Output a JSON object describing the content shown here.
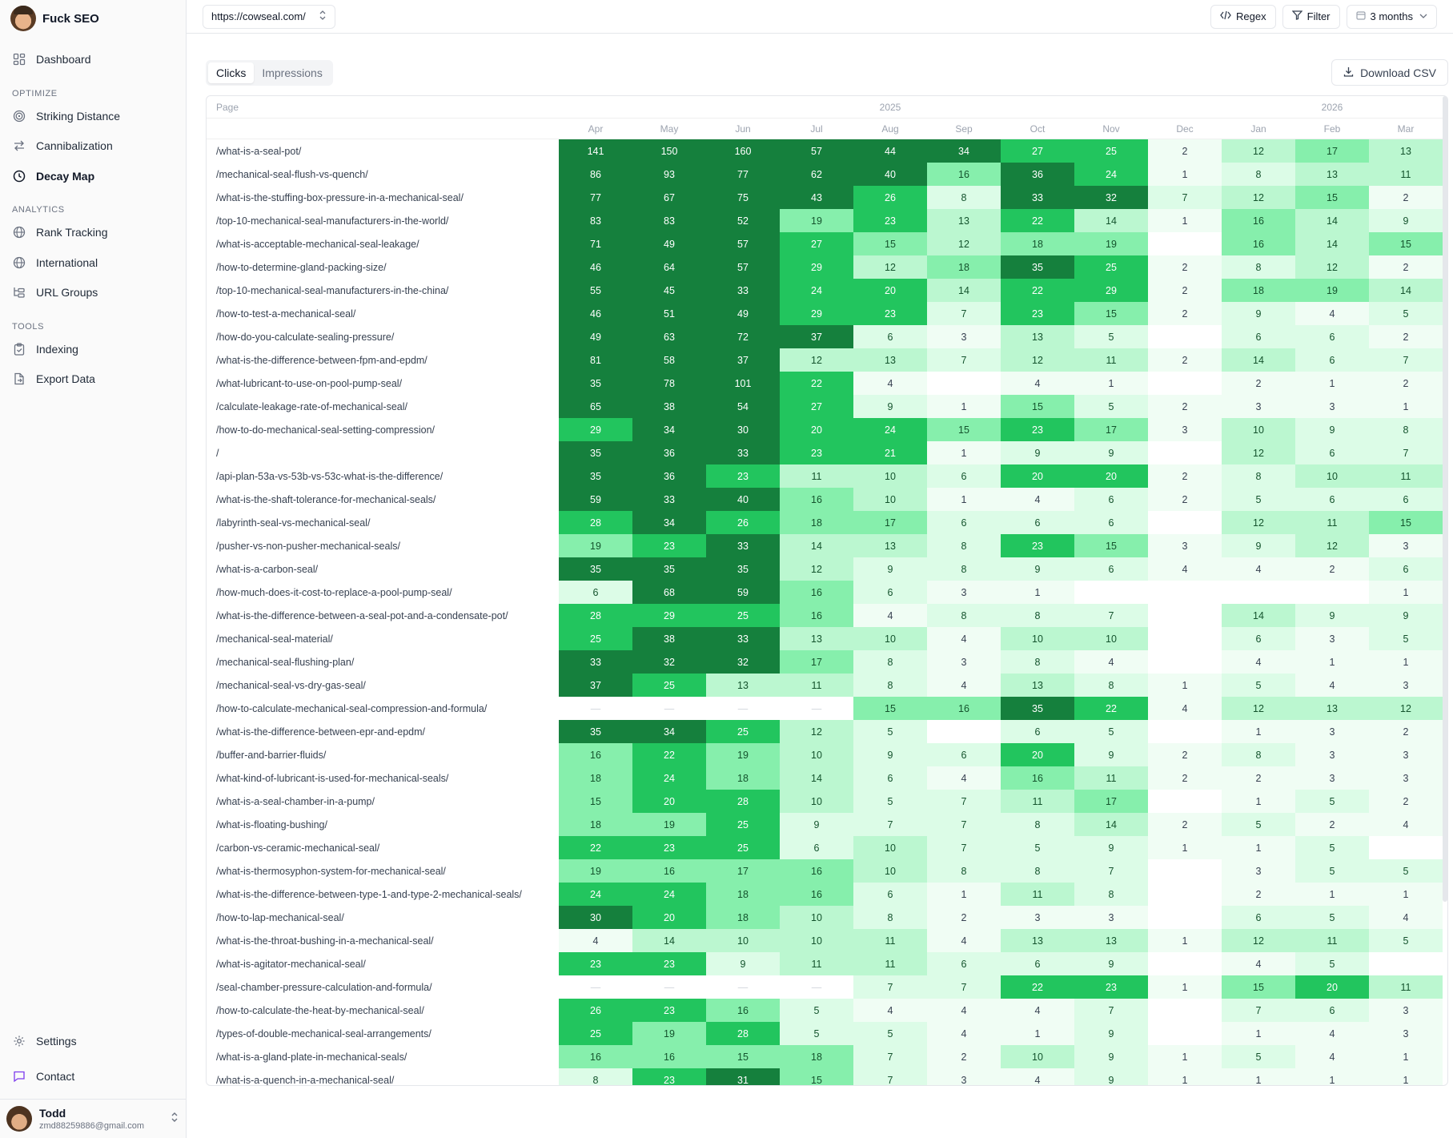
{
  "app": {
    "name": "Fuck SEO"
  },
  "sidebar": {
    "nav_top": [
      {
        "label": "Dashboard",
        "icon": "grid-icon"
      }
    ],
    "sections": [
      {
        "label": "OPTIMIZE",
        "items": [
          {
            "label": "Striking Distance",
            "icon": "target-icon",
            "active": false
          },
          {
            "label": "Cannibalization",
            "icon": "arrows-swap-icon",
            "active": false
          },
          {
            "label": "Decay Map",
            "icon": "clock-icon",
            "active": true
          }
        ]
      },
      {
        "label": "ANALYTICS",
        "items": [
          {
            "label": "Rank Tracking",
            "icon": "globe-icon",
            "active": false
          },
          {
            "label": "International",
            "icon": "globe-icon",
            "active": false
          },
          {
            "label": "URL Groups",
            "icon": "folder-tree-icon",
            "active": false
          }
        ]
      },
      {
        "label": "TOOLS",
        "items": [
          {
            "label": "Indexing",
            "icon": "clipboard-check-icon",
            "active": false
          },
          {
            "label": "Export Data",
            "icon": "file-export-icon",
            "active": false
          }
        ]
      }
    ],
    "bottom": [
      {
        "label": "Settings",
        "icon": "gear-icon"
      },
      {
        "label": "Contact",
        "icon": "message-icon"
      }
    ],
    "user": {
      "name": "Todd",
      "email": "zmd88259886@gmail.com"
    }
  },
  "topbar": {
    "site_url": "https://cowseal.com/",
    "regex_label": "Regex",
    "filter_label": "Filter",
    "range_label": "3 months"
  },
  "tabs": [
    {
      "label": "Clicks",
      "active": true
    },
    {
      "label": "Impressions",
      "active": false
    }
  ],
  "download_label": "Download CSV",
  "table": {
    "page_header": "Page",
    "years": [
      {
        "label": "2025"
      },
      {
        "label": "2026"
      }
    ],
    "months": [
      "Apr",
      "May",
      "Jun",
      "Jul",
      "Aug",
      "Sep",
      "Oct",
      "Nov",
      "Dec",
      "Jan",
      "Feb",
      "Mar"
    ],
    "rows": [
      {
        "page": "/what-is-a-seal-pot/",
        "values": [
          141,
          150,
          160,
          57,
          44,
          34,
          27,
          25,
          2,
          12,
          17,
          13
        ]
      },
      {
        "page": "/mechanical-seal-flush-vs-quench/",
        "values": [
          86,
          93,
          77,
          62,
          40,
          16,
          36,
          24,
          1,
          8,
          13,
          11
        ]
      },
      {
        "page": "/what-is-the-stuffing-box-pressure-in-a-mechanical-seal/",
        "values": [
          77,
          67,
          75,
          43,
          26,
          8,
          33,
          32,
          7,
          12,
          15,
          2
        ]
      },
      {
        "page": "/top-10-mechanical-seal-manufacturers-in-the-world/",
        "values": [
          83,
          83,
          52,
          19,
          23,
          13,
          22,
          14,
          1,
          16,
          14,
          9
        ]
      },
      {
        "page": "/what-is-acceptable-mechanical-seal-leakage/",
        "values": [
          71,
          49,
          57,
          27,
          15,
          12,
          18,
          19,
          null,
          16,
          14,
          15
        ]
      },
      {
        "page": "/how-to-determine-gland-packing-size/",
        "values": [
          46,
          64,
          57,
          29,
          12,
          18,
          35,
          25,
          2,
          8,
          12,
          2
        ]
      },
      {
        "page": "/top-10-mechanical-seal-manufacturers-in-the-china/",
        "values": [
          55,
          45,
          33,
          24,
          20,
          14,
          22,
          29,
          2,
          18,
          19,
          14
        ]
      },
      {
        "page": "/how-to-test-a-mechanical-seal/",
        "values": [
          46,
          51,
          49,
          29,
          23,
          7,
          23,
          15,
          2,
          9,
          4,
          5
        ]
      },
      {
        "page": "/how-do-you-calculate-sealing-pressure/",
        "values": [
          49,
          63,
          72,
          37,
          6,
          3,
          13,
          5,
          null,
          6,
          6,
          2
        ]
      },
      {
        "page": "/what-is-the-difference-between-fpm-and-epdm/",
        "values": [
          81,
          58,
          37,
          12,
          13,
          7,
          12,
          11,
          2,
          14,
          6,
          7
        ]
      },
      {
        "page": "/what-lubricant-to-use-on-pool-pump-seal/",
        "values": [
          35,
          78,
          101,
          22,
          4,
          null,
          4,
          1,
          null,
          2,
          1,
          2
        ]
      },
      {
        "page": "/calculate-leakage-rate-of-mechanical-seal/",
        "values": [
          65,
          38,
          54,
          27,
          9,
          1,
          15,
          5,
          2,
          3,
          3,
          1
        ]
      },
      {
        "page": "/how-to-do-mechanical-seal-setting-compression/",
        "values": [
          29,
          34,
          30,
          20,
          24,
          15,
          23,
          17,
          3,
          10,
          9,
          8
        ]
      },
      {
        "page": "/",
        "values": [
          35,
          36,
          33,
          23,
          21,
          1,
          9,
          9,
          null,
          12,
          6,
          7
        ]
      },
      {
        "page": "/api-plan-53a-vs-53b-vs-53c-what-is-the-difference/",
        "values": [
          35,
          36,
          23,
          11,
          10,
          6,
          20,
          20,
          2,
          8,
          10,
          11
        ]
      },
      {
        "page": "/what-is-the-shaft-tolerance-for-mechanical-seals/",
        "values": [
          59,
          33,
          40,
          16,
          10,
          1,
          4,
          6,
          2,
          5,
          6,
          6
        ]
      },
      {
        "page": "/labyrinth-seal-vs-mechanical-seal/",
        "values": [
          28,
          34,
          26,
          18,
          17,
          6,
          6,
          6,
          null,
          12,
          11,
          15
        ]
      },
      {
        "page": "/pusher-vs-non-pusher-mechanical-seals/",
        "values": [
          19,
          23,
          33,
          14,
          13,
          8,
          23,
          15,
          3,
          9,
          12,
          3
        ]
      },
      {
        "page": "/what-is-a-carbon-seal/",
        "values": [
          35,
          35,
          35,
          12,
          9,
          8,
          9,
          6,
          4,
          4,
          2,
          6
        ]
      },
      {
        "page": "/how-much-does-it-cost-to-replace-a-pool-pump-seal/",
        "values": [
          6,
          68,
          59,
          16,
          6,
          3,
          1,
          null,
          null,
          null,
          null,
          1
        ]
      },
      {
        "page": "/what-is-the-difference-between-a-seal-pot-and-a-condensate-pot/",
        "values": [
          28,
          29,
          25,
          16,
          4,
          8,
          8,
          7,
          null,
          14,
          9,
          9
        ]
      },
      {
        "page": "/mechanical-seal-material/",
        "values": [
          25,
          38,
          33,
          13,
          10,
          4,
          10,
          10,
          null,
          6,
          3,
          5
        ]
      },
      {
        "page": "/mechanical-seal-flushing-plan/",
        "values": [
          33,
          32,
          32,
          17,
          8,
          3,
          8,
          4,
          null,
          4,
          1,
          1
        ]
      },
      {
        "page": "/mechanical-seal-vs-dry-gas-seal/",
        "values": [
          37,
          25,
          13,
          11,
          8,
          4,
          13,
          8,
          1,
          5,
          4,
          3
        ]
      },
      {
        "page": "/how-to-calculate-mechanical-seal-compression-and-formula/",
        "values": [
          "—",
          "—",
          "—",
          "—",
          15,
          16,
          35,
          22,
          4,
          12,
          13,
          12
        ]
      },
      {
        "page": "/what-is-the-difference-between-epr-and-epdm/",
        "values": [
          35,
          34,
          25,
          12,
          5,
          null,
          6,
          5,
          null,
          1,
          3,
          2
        ]
      },
      {
        "page": "/buffer-and-barrier-fluids/",
        "values": [
          16,
          22,
          19,
          10,
          9,
          6,
          20,
          9,
          2,
          8,
          3,
          3
        ]
      },
      {
        "page": "/what-kind-of-lubricant-is-used-for-mechanical-seals/",
        "values": [
          18,
          24,
          18,
          14,
          6,
          4,
          16,
          11,
          2,
          2,
          3,
          3
        ]
      },
      {
        "page": "/what-is-a-seal-chamber-in-a-pump/",
        "values": [
          15,
          20,
          28,
          10,
          5,
          7,
          11,
          17,
          null,
          1,
          5,
          2
        ]
      },
      {
        "page": "/what-is-floating-bushing/",
        "values": [
          18,
          19,
          25,
          9,
          7,
          7,
          8,
          14,
          2,
          5,
          2,
          4
        ]
      },
      {
        "page": "/carbon-vs-ceramic-mechanical-seal/",
        "values": [
          22,
          23,
          25,
          6,
          10,
          7,
          5,
          9,
          1,
          1,
          5,
          null
        ]
      },
      {
        "page": "/what-is-thermosyphon-system-for-mechanical-seal/",
        "values": [
          19,
          16,
          17,
          16,
          10,
          8,
          8,
          7,
          null,
          3,
          5,
          5
        ]
      },
      {
        "page": "/what-is-the-difference-between-type-1-and-type-2-mechanical-seals/",
        "values": [
          24,
          24,
          18,
          16,
          6,
          1,
          11,
          8,
          null,
          2,
          1,
          1
        ]
      },
      {
        "page": "/how-to-lap-mechanical-seal/",
        "values": [
          30,
          20,
          18,
          10,
          8,
          2,
          3,
          3,
          null,
          6,
          5,
          4
        ]
      },
      {
        "page": "/what-is-the-throat-bushing-in-a-mechanical-seal/",
        "values": [
          4,
          14,
          10,
          10,
          11,
          4,
          13,
          13,
          1,
          12,
          11,
          5
        ]
      },
      {
        "page": "/what-is-agitator-mechanical-seal/",
        "values": [
          23,
          23,
          9,
          11,
          11,
          6,
          6,
          9,
          null,
          4,
          5,
          null
        ]
      },
      {
        "page": "/seal-chamber-pressure-calculation-and-formula/",
        "values": [
          "—",
          "—",
          "—",
          "—",
          7,
          7,
          22,
          23,
          1,
          15,
          20,
          11
        ]
      },
      {
        "page": "/how-to-calculate-the-heat-by-mechanical-seal/",
        "values": [
          26,
          23,
          16,
          5,
          4,
          4,
          4,
          7,
          null,
          7,
          6,
          3
        ]
      },
      {
        "page": "/types-of-double-mechanical-seal-arrangements/",
        "values": [
          25,
          19,
          28,
          5,
          5,
          4,
          1,
          9,
          null,
          1,
          4,
          3
        ]
      },
      {
        "page": "/what-is-a-gland-plate-in-mechanical-seals/",
        "values": [
          16,
          16,
          15,
          18,
          7,
          2,
          10,
          9,
          1,
          5,
          4,
          1
        ]
      },
      {
        "page": "/what-is-a-quench-in-a-mechanical-seal/",
        "values": [
          8,
          23,
          31,
          15,
          7,
          3,
          4,
          9,
          1,
          1,
          1,
          1
        ]
      }
    ]
  },
  "colors": {
    "accent": "#16a34a",
    "dark_green": "#15803d",
    "light_green": "#dcfce7"
  }
}
